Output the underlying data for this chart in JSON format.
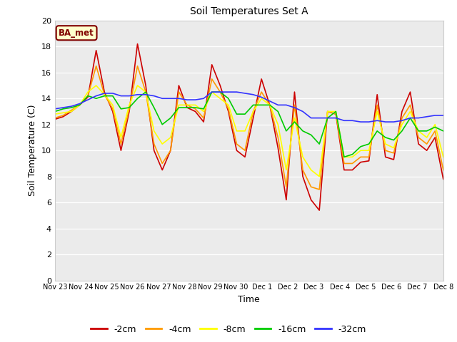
{
  "title": "Soil Temperatures Set A",
  "xlabel": "Time",
  "ylabel": "Soil Temperature (C)",
  "ylim": [
    0,
    20
  ],
  "yticks": [
    0,
    2,
    4,
    6,
    8,
    10,
    12,
    14,
    16,
    18,
    20
  ],
  "plot_bg_color": "#ebebeb",
  "annotation_text": "BA_met",
  "annotation_bg": "#ffffcc",
  "annotation_border": "#800000",
  "x_labels": [
    "Nov 23",
    "Nov 24",
    "Nov 25",
    "Nov 26",
    "Nov 27",
    "Nov 28",
    "Nov 29",
    "Nov 30",
    "Dec 1",
    "Dec 2",
    "Dec 3",
    "Dec 4",
    "Dec 5",
    "Dec 6",
    "Dec 7",
    "Dec 8"
  ],
  "series": {
    "-2cm": {
      "color": "#cc0000",
      "data": [
        12.4,
        12.6,
        13.0,
        13.5,
        14.1,
        17.7,
        14.5,
        13.0,
        10.0,
        13.0,
        18.2,
        15.0,
        10.0,
        8.5,
        10.0,
        15.0,
        13.3,
        13.0,
        12.2,
        16.6,
        15.0,
        13.0,
        10.0,
        9.5,
        12.5,
        15.5,
        13.5,
        10.2,
        6.2,
        14.5,
        8.0,
        6.2,
        5.4,
        13.0,
        12.8,
        8.5,
        8.5,
        9.1,
        9.2,
        14.3,
        9.5,
        9.3,
        13.0,
        14.5,
        10.5,
        10.0,
        11.0,
        7.8
      ]
    },
    "-4cm": {
      "color": "#ff9900",
      "data": [
        12.5,
        12.7,
        13.1,
        13.5,
        14.2,
        16.5,
        14.3,
        13.2,
        10.5,
        13.2,
        16.5,
        14.5,
        10.5,
        9.0,
        10.0,
        14.5,
        13.5,
        13.2,
        12.5,
        15.5,
        14.5,
        13.2,
        10.5,
        10.0,
        13.0,
        14.5,
        13.5,
        11.0,
        7.2,
        13.5,
        8.5,
        7.2,
        7.0,
        13.0,
        12.8,
        9.0,
        9.0,
        9.5,
        9.5,
        13.5,
        10.0,
        9.8,
        12.5,
        13.5,
        11.0,
        10.5,
        11.5,
        8.5
      ]
    },
    "-8cm": {
      "color": "#ffff00",
      "data": [
        12.8,
        12.9,
        13.0,
        13.5,
        14.5,
        15.0,
        14.3,
        13.5,
        11.0,
        13.5,
        15.0,
        14.5,
        11.5,
        10.5,
        11.0,
        13.5,
        13.5,
        13.5,
        13.0,
        14.5,
        14.0,
        13.5,
        11.5,
        11.5,
        13.0,
        14.0,
        13.5,
        12.0,
        8.5,
        12.5,
        9.5,
        8.5,
        8.0,
        13.0,
        13.0,
        9.5,
        9.5,
        10.0,
        10.0,
        13.0,
        10.5,
        10.2,
        12.0,
        13.0,
        11.5,
        11.0,
        12.0,
        9.5
      ]
    },
    "-16cm": {
      "color": "#00cc00",
      "data": [
        13.0,
        13.2,
        13.3,
        13.5,
        14.2,
        14.0,
        14.2,
        14.2,
        13.2,
        13.3,
        14.0,
        14.5,
        13.3,
        12.0,
        12.5,
        13.3,
        13.3,
        13.3,
        13.2,
        14.5,
        14.5,
        14.0,
        12.8,
        12.8,
        13.5,
        13.5,
        13.5,
        13.0,
        11.5,
        12.2,
        11.5,
        11.2,
        10.5,
        12.5,
        13.0,
        9.5,
        9.7,
        10.3,
        10.5,
        11.5,
        11.0,
        10.8,
        11.5,
        12.5,
        11.5,
        11.5,
        11.8,
        11.5
      ]
    },
    "-32cm": {
      "color": "#3333ff",
      "data": [
        13.2,
        13.3,
        13.4,
        13.6,
        13.9,
        14.2,
        14.4,
        14.4,
        14.2,
        14.2,
        14.3,
        14.3,
        14.2,
        14.0,
        14.0,
        14.0,
        13.9,
        13.9,
        14.0,
        14.5,
        14.5,
        14.5,
        14.5,
        14.4,
        14.3,
        14.1,
        13.8,
        13.5,
        13.5,
        13.3,
        13.0,
        12.5,
        12.5,
        12.5,
        12.5,
        12.3,
        12.3,
        12.2,
        12.2,
        12.3,
        12.2,
        12.2,
        12.3,
        12.5,
        12.5,
        12.6,
        12.7,
        12.7
      ]
    }
  }
}
